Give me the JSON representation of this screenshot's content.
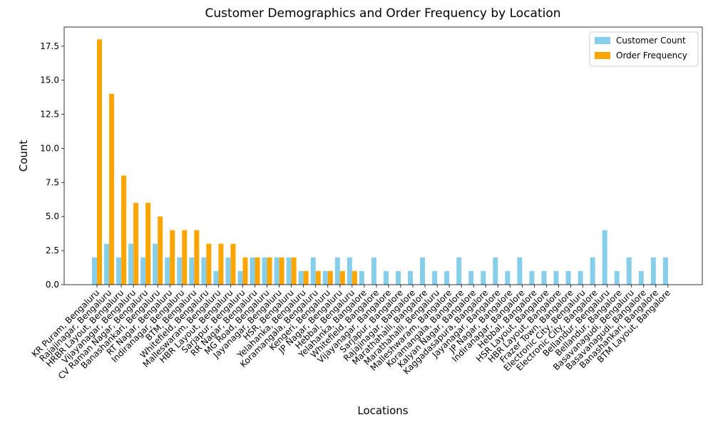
{
  "chart_data": {
    "type": "grouped_bar",
    "title": "Customer Demographics and Order Frequency by Location",
    "x_label": "Locations",
    "y_label": "Count",
    "categories": [
      "KR Puram, Bengaluru",
      "Rajajinagar, Bengaluru",
      "HRBR Layout, Bengaluru",
      "Vijayanagar, Bengaluru",
      "CV Raman Nagar, Bengaluru",
      "Banashankari, Bengaluru",
      "RT Nagar, Bengaluru",
      "Indiranagar, Bengaluru",
      "BTM, Bengaluru",
      "Whitefield, Bengaluru",
      "Malleswaram, Bengaluru",
      "HBR Layout, Bengaluru",
      "Sarjapur, Bengaluru",
      "RR Nagar, Bengaluru",
      "MG Road, Bengaluru",
      "Jayanagar, Bengaluru",
      "HSR, Bengaluru",
      "Yelahanka, Bengaluru",
      "Koramangala, Bengaluru",
      "Kengeri, Bengaluru",
      "JP Nagar, Bengaluru",
      "Hebbal, Bengaluru",
      "Yelahanka, Bangalore",
      "Whitefield, Bangalore",
      "Vijayanagar, Bangalore",
      "Sarjapur, Bangalore",
      "Rajajinagar, Bangalore",
      "Marathahalli, Bangalore",
      "Marathahalli, Bengaluru",
      "Malleshwaram, Bangalore",
      "Koramangala, Bangalore",
      "Kalyan Nagar, Bangalore",
      "Kaggadasapura, Bangalore",
      "Jayanagar, Bangalore",
      "JP Nagar, Bangalore",
      "Indiranagar, Bangalore",
      "Hebbal, Bangalore",
      "HSR Layout, Bangalore",
      "HBR Layout, Bangalore",
      "Frazer Town, Bangalore",
      "Electronic City, Bengaluru",
      "Electronic City, Bangalore",
      "Bellandur, Bengaluru",
      "Bellandur, Bangalore",
      "Basavanagudi, Bengaluru",
      "Basavanagudi, Bangalore",
      "Banashankari, Bangalore",
      "BTM Layout, Bangalore"
    ],
    "series": [
      {
        "name": "Customer Count",
        "color": "#87ceeb",
        "values": [
          2,
          3,
          2,
          3,
          2,
          3,
          2,
          2,
          2,
          2,
          1,
          2,
          1,
          2,
          2,
          2,
          2,
          1,
          2,
          1,
          2,
          2,
          1,
          2,
          1,
          1,
          1,
          2,
          1,
          1,
          2,
          1,
          1,
          2,
          1,
          2,
          1,
          1,
          1,
          1,
          1,
          2,
          4,
          1,
          2,
          1,
          2,
          2
        ]
      },
      {
        "name": "Order Frequency",
        "color": "#ffa500",
        "values": [
          18,
          14,
          8,
          6,
          6,
          5,
          4,
          4,
          4,
          3,
          3,
          3,
          2,
          2,
          2,
          2,
          2,
          1,
          1,
          1,
          1,
          1,
          0,
          0,
          0,
          0,
          0,
          0,
          0,
          0,
          0,
          0,
          0,
          0,
          0,
          0,
          0,
          0,
          0,
          0,
          0,
          0,
          0,
          0,
          0,
          0,
          0,
          0
        ]
      }
    ],
    "ylim": [
      0,
      18.9
    ],
    "yticks": [
      {
        "value": 0,
        "label": "0.0"
      },
      {
        "value": 2.5,
        "label": "2.5"
      },
      {
        "value": 5,
        "label": "5.0"
      },
      {
        "value": 7.5,
        "label": "7.5"
      },
      {
        "value": 10,
        "label": "10.0"
      },
      {
        "value": 12.5,
        "label": "12.5"
      },
      {
        "value": 15,
        "label": "15.0"
      },
      {
        "value": 17.5,
        "label": "17.5"
      }
    ],
    "legend": "upper right",
    "grid": false
  }
}
